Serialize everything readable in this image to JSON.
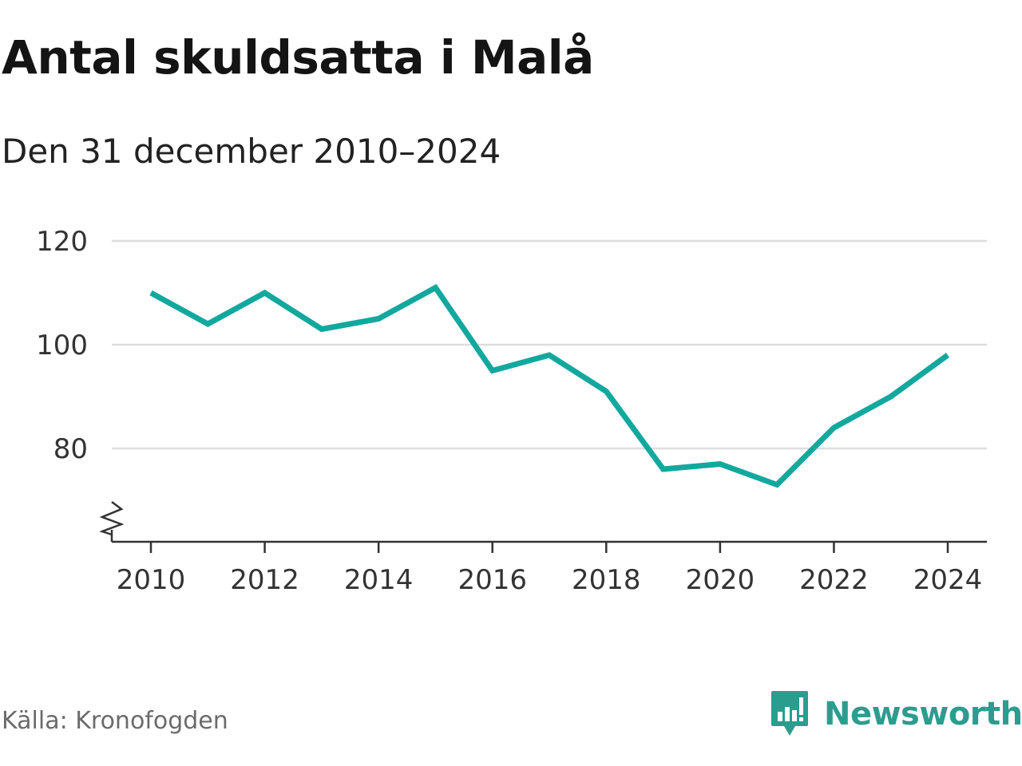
{
  "colors": {
    "line": "#13a89e",
    "grid": "#dddddd",
    "axis": "#333333",
    "brand": "#2a9d8f"
  },
  "source": "Källa: Kronofogden",
  "brand": {
    "name": "Newsworthy",
    "icon": "newsworthy-logo-icon"
  },
  "chart_data": {
    "type": "line",
    "title": "Antal skuldsatta i Malå",
    "subtitle": "Den 31 december 2010–2024",
    "x": [
      2010,
      2011,
      2012,
      2013,
      2014,
      2015,
      2016,
      2017,
      2018,
      2019,
      2020,
      2021,
      2022,
      2023,
      2024
    ],
    "series": [
      {
        "values": [
          110,
          104,
          110,
          103,
          105,
          111,
          95,
          98,
          91,
          76,
          77,
          73,
          84,
          90,
          98
        ]
      }
    ],
    "x_ticks": [
      2010,
      2012,
      2014,
      2016,
      2018,
      2020,
      2022,
      2024
    ],
    "y_ticks": [
      80,
      100,
      120
    ],
    "ylim": [
      62,
      120
    ],
    "y_axis_break": true,
    "grid": true,
    "legend": "none"
  }
}
